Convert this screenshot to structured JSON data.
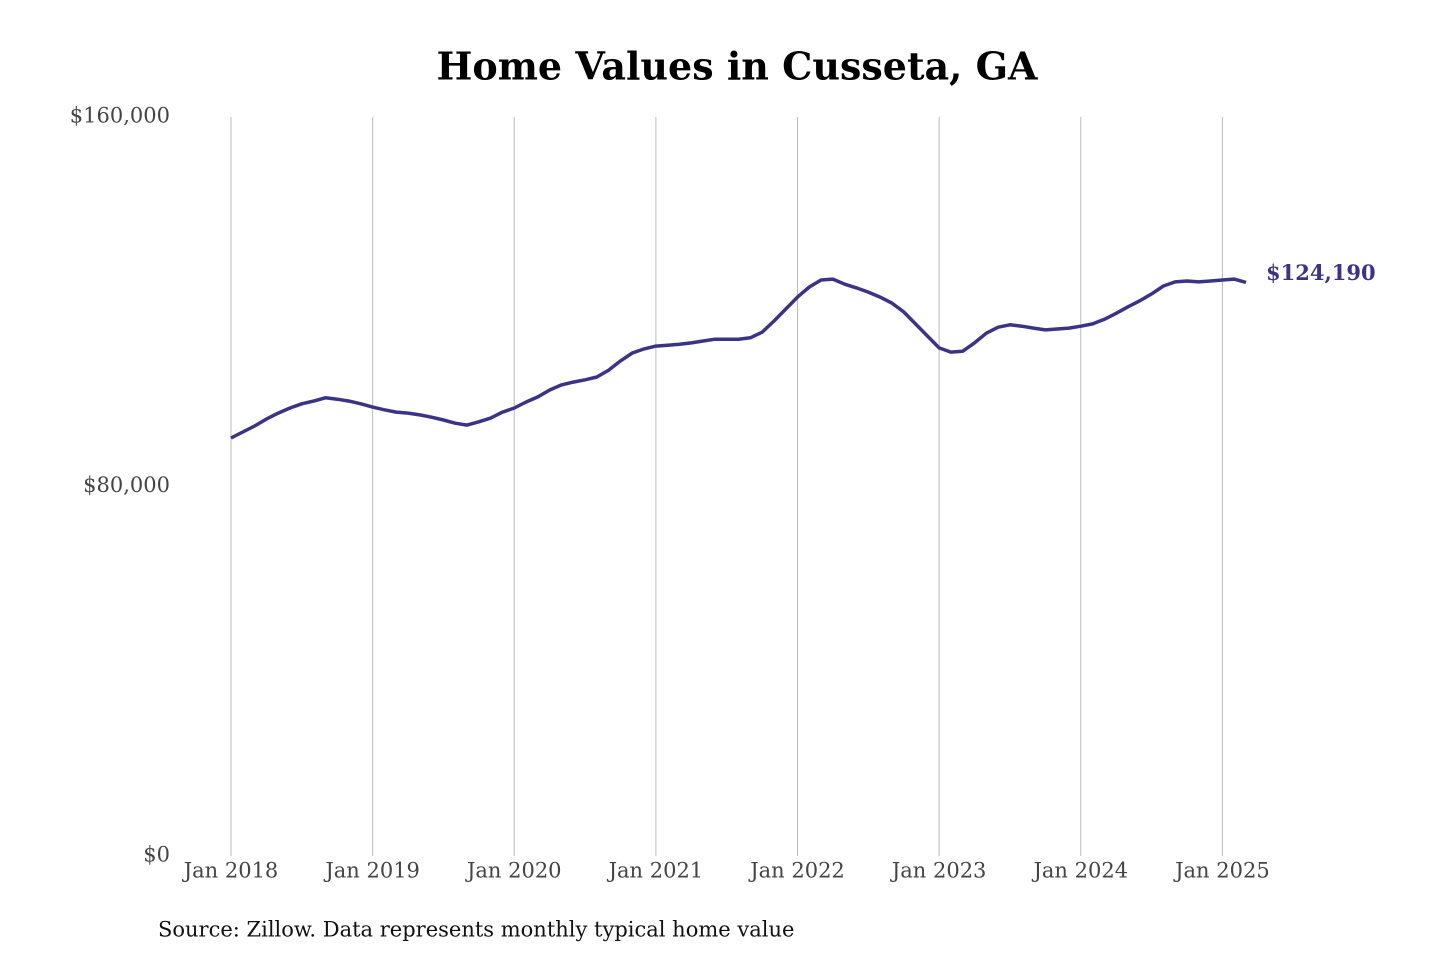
{
  "chart_data": {
    "type": "line",
    "title": "Home Values in Cusseta, GA",
    "source": "Source: Zillow. Data represents monthly typical home value",
    "x": [
      "2018-01",
      "2018-02",
      "2018-03",
      "2018-04",
      "2018-05",
      "2018-06",
      "2018-07",
      "2018-08",
      "2018-09",
      "2018-10",
      "2018-11",
      "2018-12",
      "2019-01",
      "2019-02",
      "2019-03",
      "2019-04",
      "2019-05",
      "2019-06",
      "2019-07",
      "2019-08",
      "2019-09",
      "2019-10",
      "2019-11",
      "2019-12",
      "2020-01",
      "2020-02",
      "2020-03",
      "2020-04",
      "2020-05",
      "2020-06",
      "2020-07",
      "2020-08",
      "2020-09",
      "2020-10",
      "2020-11",
      "2020-12",
      "2021-01",
      "2021-02",
      "2021-03",
      "2021-04",
      "2021-05",
      "2021-06",
      "2021-07",
      "2021-08",
      "2021-09",
      "2021-10",
      "2021-11",
      "2021-12",
      "2022-01",
      "2022-02",
      "2022-03",
      "2022-04",
      "2022-05",
      "2022-06",
      "2022-07",
      "2022-08",
      "2022-09",
      "2022-10",
      "2022-11",
      "2022-12",
      "2023-01",
      "2023-02",
      "2023-03",
      "2023-04",
      "2023-05",
      "2023-06",
      "2023-07",
      "2023-08",
      "2023-09",
      "2023-10",
      "2023-11",
      "2023-12",
      "2024-01",
      "2024-02",
      "2024-03",
      "2024-04",
      "2024-05",
      "2024-06",
      "2024-07",
      "2024-08",
      "2024-09",
      "2024-10",
      "2024-11",
      "2024-12",
      "2025-01",
      "2025-02",
      "2025-03"
    ],
    "series": [
      {
        "name": "Cusseta, GA",
        "color": "#3b3486",
        "values": [
          90500,
          91800,
          93100,
          94600,
          95900,
          97000,
          97900,
          98500,
          99200,
          98900,
          98500,
          97900,
          97200,
          96600,
          96100,
          95900,
          95500,
          95000,
          94400,
          93700,
          93300,
          94000,
          94800,
          96100,
          97000,
          98300,
          99400,
          100900,
          102000,
          102600,
          103100,
          103700,
          105200,
          107200,
          108900,
          109800,
          110400,
          110600,
          110800,
          111100,
          111500,
          111900,
          111900,
          111900,
          112200,
          113400,
          115800,
          118400,
          121000,
          123200,
          124700,
          124900,
          123800,
          123000,
          122100,
          121000,
          119700,
          117800,
          115200,
          112600,
          110000,
          109100,
          109300,
          111100,
          113200,
          114500,
          115000,
          114700,
          114300,
          113900,
          114100,
          114300,
          114700,
          115200,
          116200,
          117500,
          118900,
          120200,
          121700,
          123400,
          124300,
          124500,
          124300,
          124500,
          124700,
          124900,
          124190
        ],
        "value_labels": [
          null,
          null,
          null,
          null,
          null,
          null,
          null,
          null,
          null,
          null,
          null,
          null,
          null,
          null,
          null,
          null,
          null,
          null,
          null,
          null,
          null,
          null,
          null,
          null,
          null,
          null,
          null,
          null,
          null,
          null,
          null,
          null,
          null,
          null,
          null,
          null,
          null,
          null,
          null,
          null,
          null,
          null,
          null,
          null,
          null,
          null,
          null,
          null,
          null,
          null,
          null,
          null,
          null,
          null,
          null,
          null,
          null,
          null,
          null,
          null,
          null,
          null,
          null,
          null,
          null,
          null,
          null,
          null,
          null,
          null,
          null,
          null,
          null,
          null,
          null,
          null,
          null,
          null,
          null,
          null,
          null,
          null,
          null,
          null,
          null,
          null,
          "$124,190"
        ]
      }
    ],
    "xlim": [
      "2018-01",
      "2025-03"
    ],
    "xticks": [
      {
        "value": "2018-01",
        "label": "Jan 2018"
      },
      {
        "value": "2019-01",
        "label": "Jan 2019"
      },
      {
        "value": "2020-01",
        "label": "Jan 2020"
      },
      {
        "value": "2021-01",
        "label": "Jan 2021"
      },
      {
        "value": "2022-01",
        "label": "Jan 2022"
      },
      {
        "value": "2023-01",
        "label": "Jan 2023"
      },
      {
        "value": "2024-01",
        "label": "Jan 2024"
      },
      {
        "value": "2025-01",
        "label": "Jan 2025"
      }
    ],
    "ylim": [
      0,
      160000
    ],
    "yticks": [
      {
        "value": 0,
        "label": "$0"
      },
      {
        "value": 80000,
        "label": "$80,000"
      },
      {
        "value": 160000,
        "label": "$160,000"
      }
    ],
    "grid": "x"
  }
}
